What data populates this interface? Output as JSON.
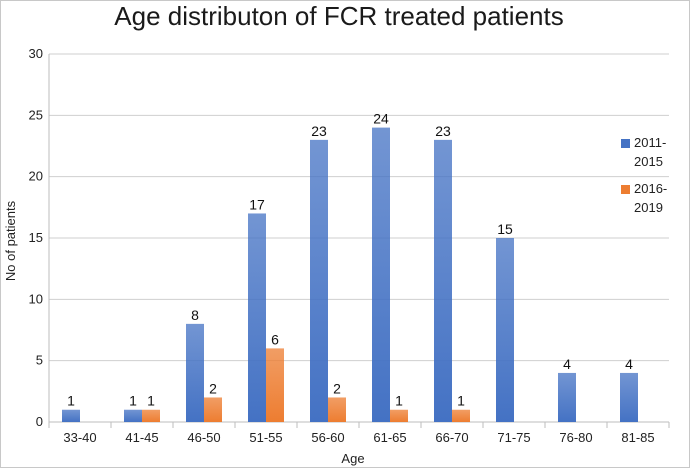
{
  "chart_data": {
    "type": "bar",
    "title": "Age distributon of FCR treated patients",
    "xlabel": "Age",
    "ylabel": "No of patients",
    "categories": [
      "33-40",
      "41-45",
      "46-50",
      "51-55",
      "56-60",
      "61-65",
      "66-70",
      "71-75",
      "76-80",
      "81-85"
    ],
    "series": [
      {
        "name": "2011-2015",
        "legend_lines": [
          "2011-",
          "2015"
        ],
        "color": "#4472C4",
        "values": [
          1,
          1,
          8,
          17,
          23,
          24,
          23,
          15,
          4,
          4
        ],
        "labels": [
          "1",
          "1",
          "8",
          "17",
          "23",
          "24",
          "23",
          "15",
          "4",
          "4"
        ]
      },
      {
        "name": "2016-2019",
        "legend_lines": [
          "2016-",
          "2019"
        ],
        "color": "#ED7D31",
        "values": [
          null,
          1,
          2,
          6,
          2,
          1,
          1,
          null,
          null,
          null
        ],
        "labels": [
          null,
          "1",
          "2",
          "6",
          "2",
          "1",
          "1",
          null,
          null,
          null
        ]
      }
    ],
    "ylim": [
      0,
      30
    ],
    "yticks": [
      "0",
      "5",
      "10",
      "15",
      "20",
      "25",
      "30"
    ],
    "legend_position": "right",
    "grid": true
  }
}
